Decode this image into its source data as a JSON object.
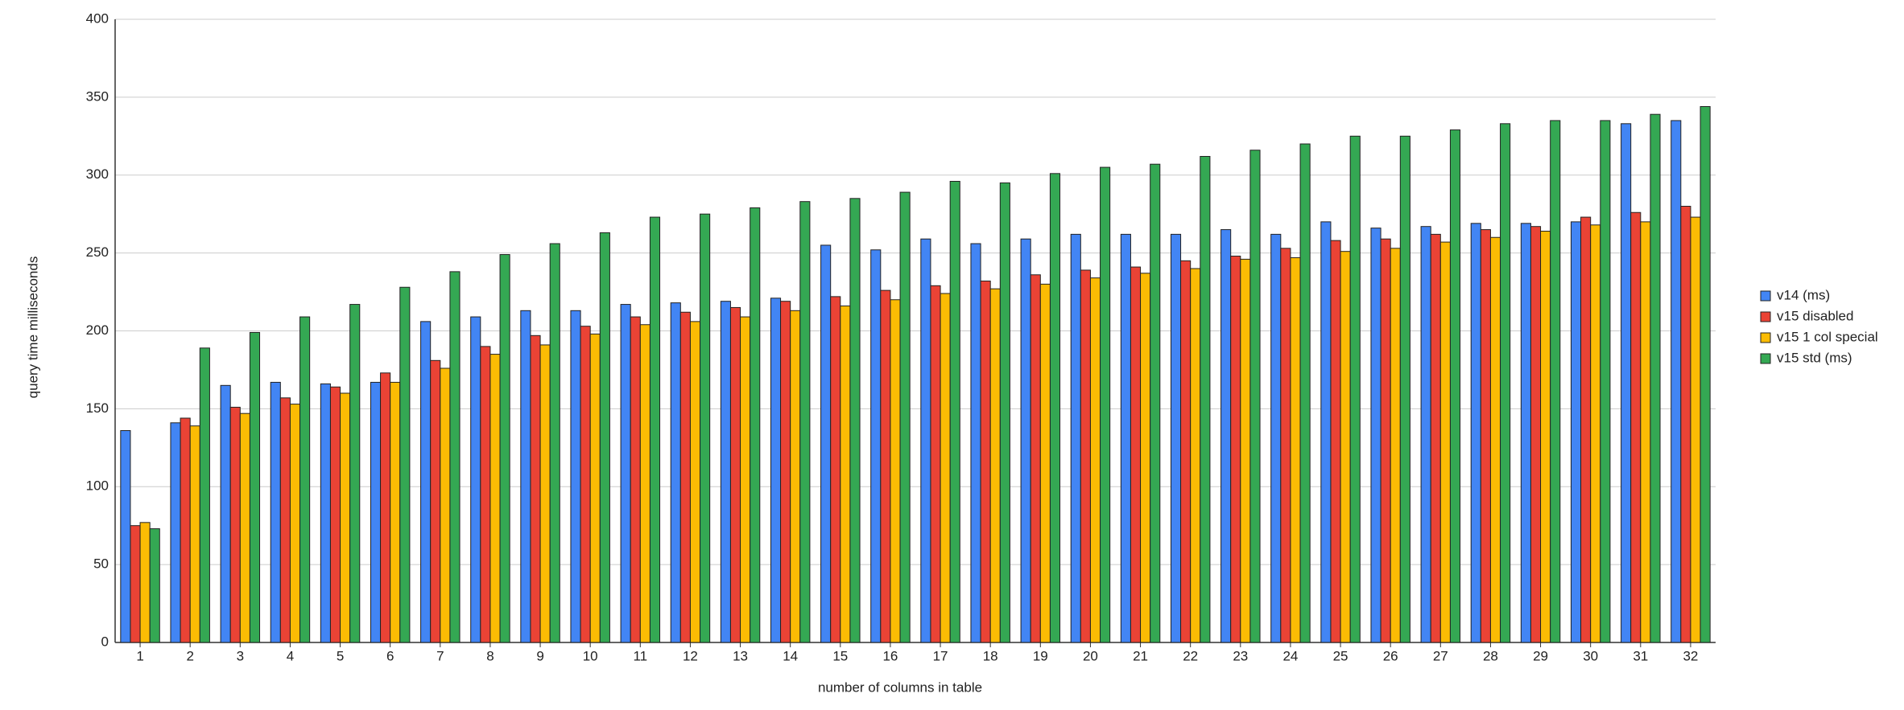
{
  "chart_data": {
    "type": "bar",
    "x_label": "number of columns in table",
    "y_label": "query time milliseconds",
    "categories": [
      "1",
      "2",
      "3",
      "4",
      "5",
      "6",
      "7",
      "8",
      "9",
      "10",
      "11",
      "12",
      "13",
      "14",
      "15",
      "16",
      "17",
      "18",
      "19",
      "20",
      "21",
      "22",
      "23",
      "24",
      "25",
      "26",
      "27",
      "28",
      "29",
      "30",
      "31",
      "32"
    ],
    "series": [
      {
        "name": "v14 (ms)",
        "color": "#4285f4",
        "values": [
          136,
          141,
          165,
          167,
          166,
          167,
          206,
          209,
          213,
          213,
          217,
          218,
          219,
          221,
          255,
          252,
          259,
          256,
          259,
          262,
          262,
          262,
          265,
          262,
          270,
          266,
          267,
          269,
          269,
          270,
          333,
          335
        ]
      },
      {
        "name": "v15 disabled",
        "color": "#ea4335",
        "values": [
          75,
          144,
          151,
          157,
          164,
          173,
          181,
          190,
          197,
          203,
          209,
          212,
          215,
          219,
          222,
          226,
          229,
          232,
          236,
          239,
          241,
          245,
          248,
          253,
          258,
          259,
          262,
          265,
          267,
          273,
          276,
          280
        ]
      },
      {
        "name": "v15 1 col special",
        "color": "#fbbc04",
        "values": [
          77,
          139,
          147,
          153,
          160,
          167,
          176,
          185,
          191,
          198,
          204,
          206,
          209,
          213,
          216,
          220,
          224,
          227,
          230,
          234,
          237,
          240,
          246,
          247,
          251,
          253,
          257,
          260,
          264,
          268,
          270,
          273
        ]
      },
      {
        "name": "v15 std (ms)",
        "color": "#34a853",
        "values": [
          73,
          189,
          199,
          209,
          217,
          228,
          238,
          249,
          256,
          263,
          273,
          275,
          279,
          283,
          285,
          289,
          296,
          295,
          301,
          305,
          307,
          312,
          316,
          320,
          325,
          325,
          329,
          333,
          335,
          335,
          339,
          344
        ]
      }
    ],
    "ylim": [
      0,
      400
    ],
    "yticks": [
      0,
      50,
      100,
      150,
      200,
      250,
      300,
      350,
      400
    ],
    "grid": true,
    "legend": "right"
  }
}
